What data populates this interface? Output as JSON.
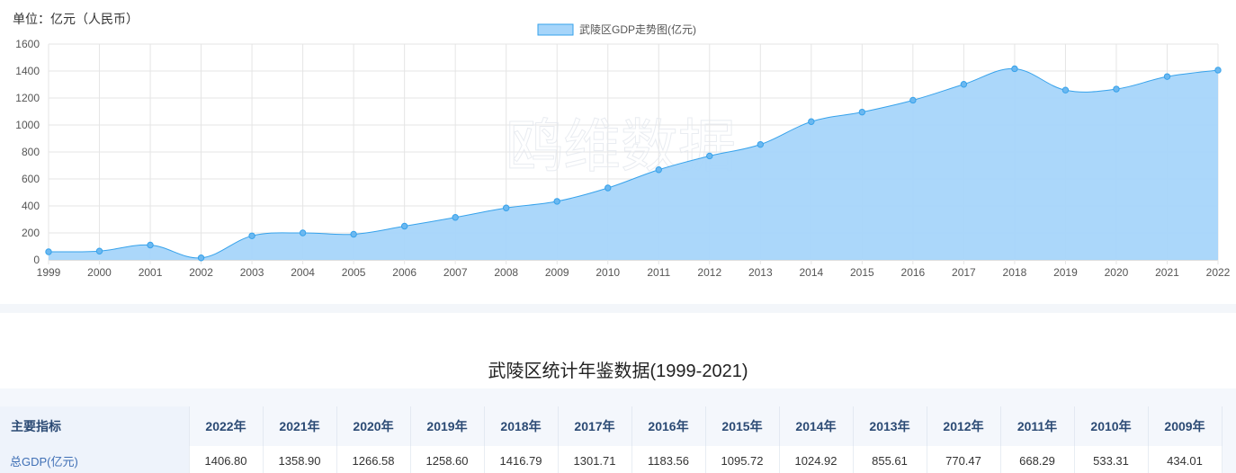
{
  "unit_label": "单位：亿元（人民币）",
  "watermark": "鸥维数据",
  "chart_data": {
    "type": "area",
    "title": "",
    "legend": {
      "label": "武陵区GDP走势图(亿元)",
      "position": "top-center"
    },
    "x": [
      "1999",
      "2000",
      "2001",
      "2002",
      "2003",
      "2004",
      "2005",
      "2006",
      "2007",
      "2008",
      "2009",
      "2010",
      "2011",
      "2012",
      "2013",
      "2014",
      "2015",
      "2016",
      "2017",
      "2018",
      "2019",
      "2020",
      "2021",
      "2022"
    ],
    "series": [
      {
        "name": "武陵区GDP走势图(亿元)",
        "values": [
          60,
          65,
          110,
          15,
          178,
          200,
          190,
          250,
          315,
          385,
          434.01,
          533.31,
          668.29,
          770.47,
          855.61,
          1024.92,
          1095.72,
          1183.56,
          1301.71,
          1416.79,
          1258.6,
          1266.58,
          1358.9,
          1406.8
        ]
      }
    ],
    "yticks": [
      0,
      200,
      400,
      600,
      800,
      1000,
      1200,
      1400,
      1600
    ],
    "ylim": [
      0,
      1600
    ],
    "grid": true,
    "colors": {
      "fill": "#a6d5fa",
      "line": "#36a2eb",
      "point": "#6cb8f0"
    }
  },
  "table": {
    "title": "武陵区统计年鉴数据(1999-2021)",
    "header_label": "主要指标",
    "columns": [
      "2022年",
      "2021年",
      "2020年",
      "2019年",
      "2018年",
      "2017年",
      "2016年",
      "2015年",
      "2014年",
      "2013年",
      "2012年",
      "2011年",
      "2010年",
      "2009年"
    ],
    "rows": [
      {
        "label": "总GDP(亿元)",
        "values": [
          "1406.80",
          "1358.90",
          "1266.58",
          "1258.60",
          "1416.79",
          "1301.71",
          "1183.56",
          "1095.72",
          "1024.92",
          "855.61",
          "770.47",
          "668.29",
          "533.31",
          "434.01"
        ]
      }
    ]
  }
}
